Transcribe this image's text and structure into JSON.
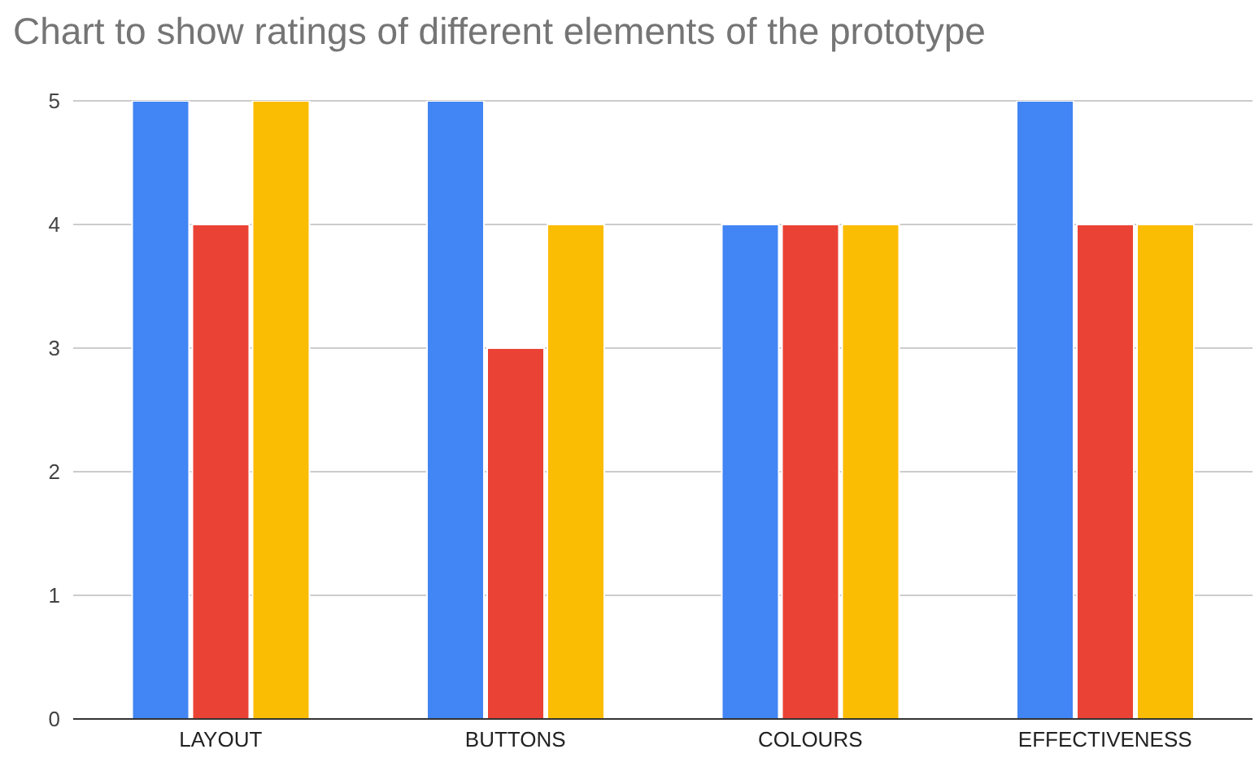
{
  "chart_data": {
    "type": "bar",
    "title": "Chart to show ratings of different elements of the prototype",
    "categories": [
      "LAYOUT",
      "BUTTONS",
      "COLOURS",
      "EFFECTIVENESS"
    ],
    "series": [
      {
        "color": "#4285f4",
        "values": [
          5,
          5,
          4,
          5
        ]
      },
      {
        "color": "#ea4335",
        "values": [
          4,
          3,
          4,
          4
        ]
      },
      {
        "color": "#fbbc04",
        "values": [
          5,
          4,
          4,
          4
        ]
      }
    ],
    "ylim": [
      0,
      5
    ],
    "yticks": [
      0,
      1,
      2,
      3,
      4,
      5
    ],
    "grid": "y"
  }
}
